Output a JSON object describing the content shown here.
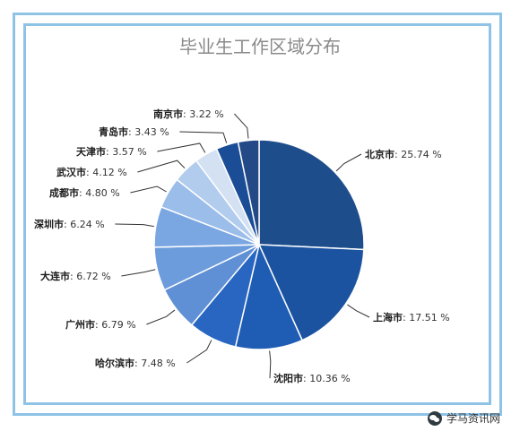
{
  "chart_data": {
    "type": "pie",
    "title": "毕业生工作区域分布",
    "unit": "%",
    "slices": [
      {
        "name": "北京市",
        "value": 25.74,
        "display": ": 25.74 %",
        "color": "#1e4d8c"
      },
      {
        "name": "上海市",
        "value": 17.51,
        "display": ": 17.51 %",
        "color": "#1b53a0"
      },
      {
        "name": "沈阳市",
        "value": 10.36,
        "display": ": 10.36 %",
        "color": "#1f5db4"
      },
      {
        "name": "哈尔滨市",
        "value": 7.48,
        "display": ": 7.48 %",
        "color": "#2866c2"
      },
      {
        "name": "广州市",
        "value": 6.79,
        "display": ": 6.79 %",
        "color": "#5f8fd4"
      },
      {
        "name": "大连市",
        "value": 6.72,
        "display": ": 6.72 %",
        "color": "#6c9cdc"
      },
      {
        "name": "深圳市",
        "value": 6.24,
        "display": ": 6.24 %",
        "color": "#7aa6e2"
      },
      {
        "name": "成都市",
        "value": 4.8,
        "display": ": 4.80 %",
        "color": "#9bbde9"
      },
      {
        "name": "武汉市",
        "value": 4.12,
        "display": ": 4.12 %",
        "color": "#b2ccee"
      },
      {
        "name": "天津市",
        "value": 3.57,
        "display": ": 3.57 %",
        "color": "#d3e1f3"
      },
      {
        "name": "青岛市",
        "value": 3.43,
        "display": ": 3.43 %",
        "color": "#1b4d97"
      },
      {
        "name": "南京市",
        "value": 3.22,
        "display": ": 3.22 %",
        "color": "#234a87"
      }
    ]
  },
  "watermark": {
    "text": "学马资讯网",
    "icon": "wechat-icon"
  }
}
